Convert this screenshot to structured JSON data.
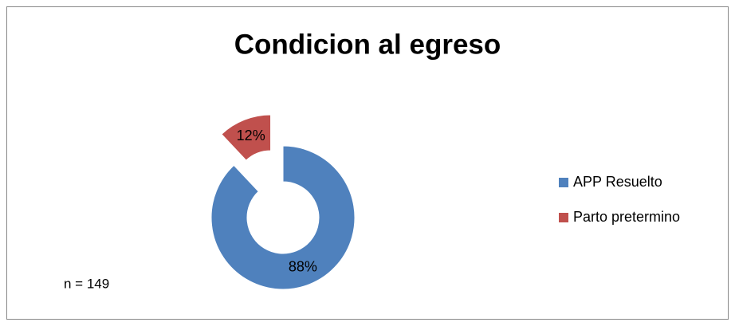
{
  "chart_data": {
    "type": "doughnut",
    "title": "Condicion al egreso",
    "categories": [
      "APP Resuelto",
      "Parto pretermino"
    ],
    "values": [
      88,
      12
    ],
    "value_labels": [
      "88%",
      "12%"
    ],
    "colors": [
      "#4f81bd",
      "#c0504d"
    ],
    "explode": [
      false,
      true
    ],
    "legend": "right",
    "annotation": "n = 149"
  }
}
